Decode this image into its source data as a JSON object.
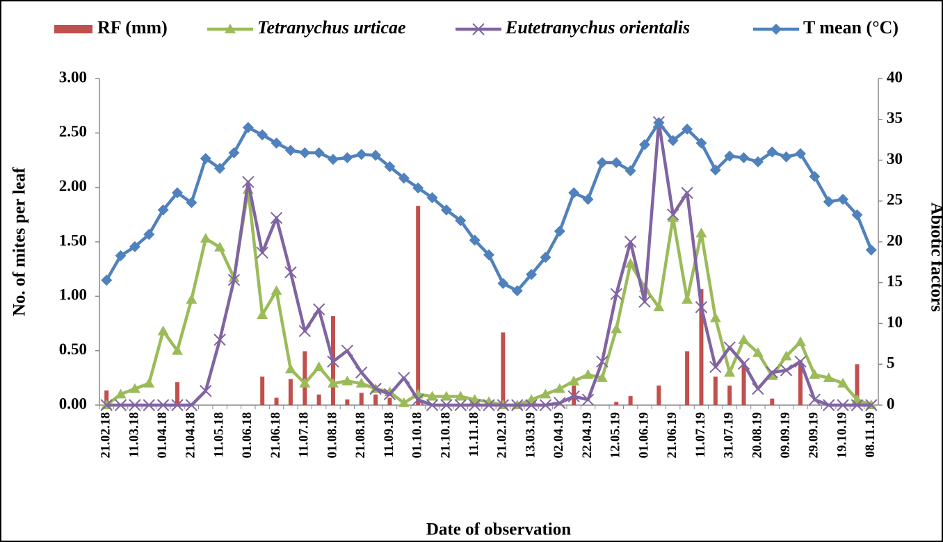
{
  "chart_data": {
    "type": "combo",
    "x_label": "Date of observation",
    "y_label": "No. of mites per leaf",
    "y2_label": "Abiotic factors",
    "categories": [
      "21.02.18",
      null,
      "11.03.18",
      null,
      "01.04.18",
      null,
      "21.04.18",
      null,
      "11.05.18",
      null,
      "01.06.18",
      null,
      "21.06.18",
      null,
      "11.07.18",
      null,
      "01.08.18",
      null,
      "21.08.18",
      null,
      "11.09.18",
      null,
      "01.10.18",
      null,
      "21.10.18",
      null,
      "11.11.18",
      null,
      "21.02.19",
      null,
      "13.03.19",
      null,
      "02.04.19",
      null,
      "22.04.19",
      null,
      "12.05.19",
      null,
      "01.06.19",
      null,
      "21.06.19",
      null,
      "11.07.19",
      null,
      "31.07.19",
      null,
      "20.08.19",
      null,
      "09.09.19",
      null,
      "29.09.19",
      null,
      "19.10.19",
      null,
      "08.11.19"
    ],
    "ylim": [
      0,
      3
    ],
    "yticks": [
      {
        "value": 0,
        "label": "0.00"
      },
      {
        "value": 0.5,
        "label": "0.50"
      },
      {
        "value": 1,
        "label": "1.00"
      },
      {
        "value": 1.5,
        "label": "1.50"
      },
      {
        "value": 2,
        "label": "2.00"
      },
      {
        "value": 2.5,
        "label": "2.50"
      },
      {
        "value": 3,
        "label": "3.00"
      }
    ],
    "y2lim": [
      0,
      40
    ],
    "y2ticks": [
      0,
      5,
      10,
      15,
      20,
      25,
      30,
      35,
      40
    ],
    "legend": "top",
    "series": [
      {
        "name": "RF (mm)",
        "type": "bar",
        "axis": "y2",
        "color": "#c0504d",
        "font_style": "normal",
        "values": [
          1.8,
          0,
          0,
          0,
          0,
          2.8,
          0,
          0,
          0,
          0,
          0,
          3.5,
          0.9,
          3.2,
          6.6,
          1.3,
          10.9,
          0.7,
          1.5,
          1.3,
          0.9,
          0,
          24.4,
          0,
          0,
          0,
          0,
          0,
          8.9,
          0,
          0,
          0,
          0,
          2.4,
          0,
          0,
          0.4,
          1.1,
          0,
          2.4,
          0,
          6.6,
          14.2,
          3.5,
          2.4,
          5.2,
          0,
          0.8,
          0,
          5.5,
          0,
          0,
          0,
          5.0,
          0
        ]
      },
      {
        "name": "Tetranychus urticae",
        "type": "line",
        "marker": "triangle",
        "color": "#9bbb59",
        "font_style": "italic",
        "values": [
          0.0,
          0.1,
          0.15,
          0.2,
          0.68,
          0.5,
          0.97,
          1.53,
          1.45,
          1.17,
          1.98,
          0.83,
          1.05,
          0.33,
          0.2,
          0.35,
          0.2,
          0.22,
          0.2,
          0.15,
          0.12,
          0.02,
          0.1,
          0.08,
          0.08,
          0.08,
          0.05,
          0.03,
          0.0,
          0.0,
          0.05,
          0.1,
          0.15,
          0.22,
          0.28,
          0.25,
          0.7,
          1.3,
          1.08,
          0.9,
          1.72,
          0.97,
          1.58,
          0.8,
          0.3,
          0.6,
          0.48,
          0.27,
          0.45,
          0.58,
          0.28,
          0.25,
          0.2,
          0.05,
          0.0
        ]
      },
      {
        "name": "Eutetranychus orientalis",
        "type": "line",
        "marker": "x",
        "color": "#8064a2",
        "font_style": "italic",
        "values": [
          0,
          0,
          0,
          0,
          0,
          0,
          0,
          0.13,
          0.6,
          1.15,
          2.05,
          1.4,
          1.72,
          1.22,
          0.68,
          0.88,
          0.4,
          0.5,
          0.3,
          0.15,
          0.1,
          0.25,
          0.05,
          0,
          0,
          0,
          0,
          0,
          0,
          0,
          0,
          0,
          0.02,
          0.08,
          0.05,
          0.4,
          1.02,
          1.5,
          0.95,
          2.6,
          1.75,
          1.95,
          0.9,
          0.35,
          0.53,
          0.38,
          0.15,
          0.3,
          0.32,
          0.4,
          0.05,
          0,
          0,
          0,
          0
        ]
      },
      {
        "name": "T mean (°C)",
        "type": "line",
        "marker": "diamond",
        "axis": "y2",
        "color": "#4f81bd",
        "font_style": "normal",
        "values": [
          15.3,
          18.3,
          19.4,
          20.9,
          23.9,
          26.0,
          24.8,
          30.2,
          29.0,
          30.9,
          34.0,
          33.1,
          32.1,
          31.2,
          30.9,
          30.9,
          30.1,
          30.3,
          30.7,
          30.6,
          29.2,
          27.8,
          26.6,
          25.4,
          23.9,
          22.6,
          20.2,
          18.4,
          14.9,
          14.0,
          16.0,
          18.1,
          21.3,
          26.0,
          25.2,
          29.7,
          29.7,
          28.7,
          31.9,
          34.6,
          32.4,
          33.8,
          32.1,
          28.8,
          30.5,
          30.3,
          29.8,
          31.0,
          30.4,
          30.8,
          28.0,
          24.9,
          25.2,
          23.3,
          19.0
        ]
      }
    ]
  }
}
